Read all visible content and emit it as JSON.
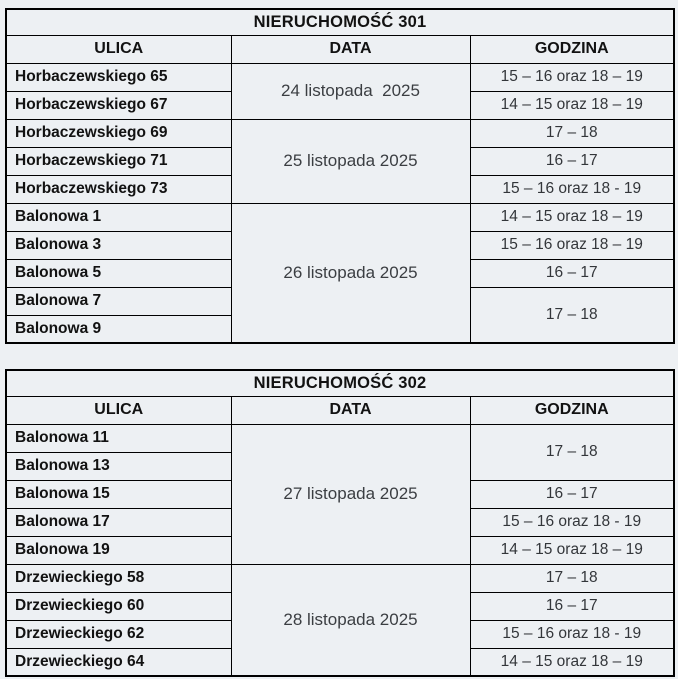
{
  "page": {
    "background_color": "#edf0f3",
    "border_color": "#000000",
    "heading_text_color": "#121212",
    "body_text_color": "#3b3e42"
  },
  "tables": [
    {
      "title": "NIERUCHOMOŚĆ 301",
      "columns": [
        "ULICA",
        "DATA",
        "GODZINA"
      ],
      "groups": [
        {
          "date": "24 listopada  2025",
          "rows": [
            {
              "street": "Horbaczewskiego 65",
              "time": "15 – 16 oraz 18 – 19"
            },
            {
              "street": "Horbaczewskiego 67",
              "time": "14 – 15 oraz 18 – 19"
            }
          ]
        },
        {
          "date": "25 listopada 2025",
          "rows": [
            {
              "street": "Horbaczewskiego 69",
              "time": "17 – 18"
            },
            {
              "street": "Horbaczewskiego 71",
              "time": "16 – 17"
            },
            {
              "street": "Horbaczewskiego 73",
              "time": "15 – 16 oraz 18 - 19"
            }
          ]
        },
        {
          "date": "26 listopada 2025",
          "rows": [
            {
              "street": "Balonowa 1",
              "time": "14 – 15 oraz 18 – 19"
            },
            {
              "street": "Balonowa 3",
              "time": "15 – 16 oraz 18 – 19"
            },
            {
              "street": "Balonowa 5",
              "time": "16 – 17"
            },
            {
              "street": "Balonowa 7",
              "time": "17 – 18",
              "time_rowspan": 2
            },
            {
              "street": "Balonowa 9"
            }
          ]
        }
      ]
    },
    {
      "title": "NIERUCHOMOŚĆ 302",
      "columns": [
        "ULICA",
        "DATA",
        "GODZINA"
      ],
      "groups": [
        {
          "date": "27 listopada 2025",
          "rows": [
            {
              "street": "Balonowa 11",
              "time": "17 – 18",
              "time_rowspan": 2
            },
            {
              "street": "Balonowa 13"
            },
            {
              "street": "Balonowa 15",
              "time": "16 – 17"
            },
            {
              "street": "Balonowa 17",
              "time": "15 – 16 oraz 18 - 19"
            },
            {
              "street": "Balonowa 19",
              "time": "14 – 15 oraz 18 – 19"
            }
          ]
        },
        {
          "date": "28 listopada 2025",
          "rows": [
            {
              "street": "Drzewieckiego 58",
              "time": "17 – 18"
            },
            {
              "street": "Drzewieckiego 60",
              "time": "16 – 17"
            },
            {
              "street": "Drzewieckiego 62",
              "time": "15 – 16 oraz 18 - 19"
            },
            {
              "street": "Drzewieckiego 64",
              "time": "14 – 15 oraz 18 – 19"
            }
          ]
        }
      ]
    }
  ]
}
